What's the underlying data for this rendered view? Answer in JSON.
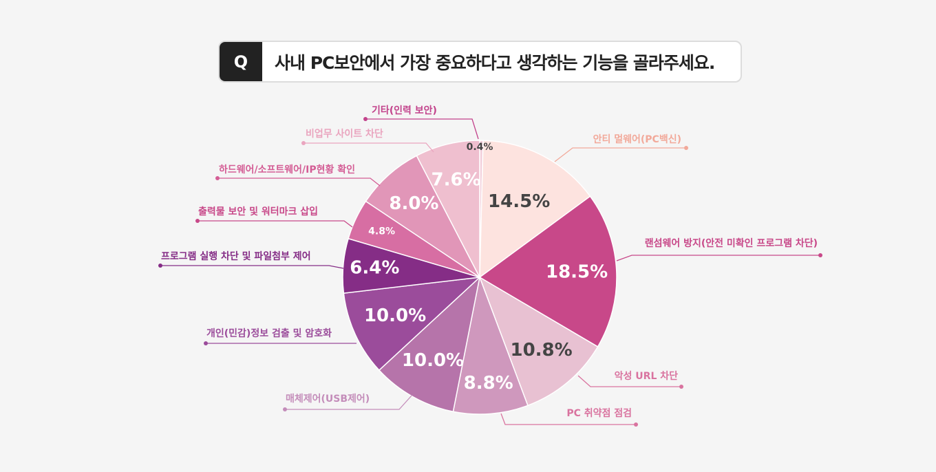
{
  "question": {
    "badge": "Q",
    "text": "사내 PC보안에서 가장 중요하다고 생각하는 기능을 골라주세요."
  },
  "chart_data": {
    "type": "pie",
    "title": "사내 PC보안에서 가장 중요하다고 생각하는 기능을 골라주세요.",
    "start_angle": "12 o'clock, clockwise",
    "slices": [
      {
        "label": "기타(인력 보안)",
        "value": 0.4,
        "display": "0.4%",
        "color": "#f2cfdb",
        "text_color": "#444444",
        "label_color": "#c2428b"
      },
      {
        "label": "안티 멀웨어(PC백신)",
        "value": 14.5,
        "display": "14.5%",
        "color": "#fde3df",
        "text_color": "#444444",
        "label_color": "#f2a99a"
      },
      {
        "label": "랜섬웨어 방지(안전 미확인 프로그램 차단)",
        "value": 18.5,
        "display": "18.5%",
        "color": "#c84889",
        "text_color": "#ffffff",
        "label_color": "#c84889"
      },
      {
        "label": "악성 URL 차단",
        "value": 10.8,
        "display": "10.8%",
        "color": "#e8c1d2",
        "text_color": "#444444",
        "label_color": "#d9739f"
      },
      {
        "label": "PC 취약점 점검",
        "value": 8.8,
        "display": "8.8%",
        "color": "#cf98bd",
        "text_color": "#ffffff",
        "label_color": "#d9739f"
      },
      {
        "label": "매체제어(USB제어)",
        "value": 10.0,
        "display": "10.0%",
        "color": "#b674aa",
        "text_color": "#ffffff",
        "label_color": "#c48dba"
      },
      {
        "label": "개인(민감)정보 검출 및 암호화",
        "value": 10.0,
        "display": "10.0%",
        "color": "#9b4c9b",
        "text_color": "#ffffff",
        "label_color": "#9b4c9b"
      },
      {
        "label": "프로그램 실행 차단 및 파일첨부 제어",
        "value": 6.4,
        "display": "6.4%",
        "color": "#852d86",
        "text_color": "#ffffff",
        "label_color": "#852d86"
      },
      {
        "label": "출력물 보안 및 워터마크 삽입",
        "value": 4.8,
        "display": "4.8%",
        "color": "#d76ea3",
        "text_color": "#ffffff",
        "label_color": "#c84889"
      },
      {
        "label": "하드웨어/소프트웨어/IP현황 확인",
        "value": 8.0,
        "display": "8.0%",
        "color": "#e196b8",
        "text_color": "#ffffff",
        "label_color": "#d45d95"
      },
      {
        "label": "비업무 사이트 차단",
        "value": 7.6,
        "display": "7.6%",
        "color": "#efbfcf",
        "text_color": "#ffffff",
        "label_color": "#eaa5bf"
      }
    ],
    "legend": "callout labels with leader lines"
  }
}
